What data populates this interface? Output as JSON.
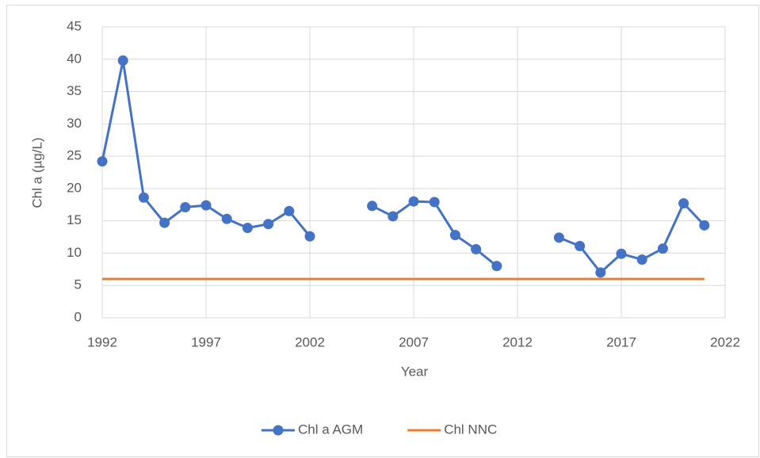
{
  "chart_data": {
    "type": "line",
    "x": [
      1992,
      1993,
      1994,
      1995,
      1996,
      1997,
      1998,
      1999,
      2000,
      2001,
      2002,
      2003,
      2004,
      2005,
      2006,
      2007,
      2008,
      2009,
      2010,
      2011,
      2012,
      2013,
      2014,
      2015,
      2016,
      2017,
      2018,
      2019,
      2020,
      2021
    ],
    "series": [
      {
        "name": "Chl a AGM",
        "color": "#4472c4",
        "marker": true,
        "values": [
          24.2,
          39.8,
          18.6,
          14.7,
          17.1,
          17.4,
          15.3,
          13.9,
          14.5,
          16.5,
          12.6,
          null,
          null,
          17.3,
          15.7,
          18.0,
          17.9,
          12.8,
          10.6,
          8.0,
          null,
          null,
          12.4,
          11.1,
          7.0,
          9.9,
          9.0,
          10.7,
          17.7,
          14.3
        ]
      },
      {
        "name": "Chl NNC",
        "color": "#ed7d31",
        "marker": false,
        "values": [
          6,
          6,
          6,
          6,
          6,
          6,
          6,
          6,
          6,
          6,
          6,
          6,
          6,
          6,
          6,
          6,
          6,
          6,
          6,
          6,
          6,
          6,
          6,
          6,
          6,
          6,
          6,
          6,
          6,
          6
        ]
      }
    ],
    "xlabel": "Year",
    "ylabel": "Chl a (µg/L)",
    "xlim": [
      1992,
      2022
    ],
    "xticks": [
      1992,
      1997,
      2002,
      2007,
      2012,
      2017,
      2022
    ],
    "ylim": [
      0,
      45
    ],
    "yticks": [
      0,
      5,
      10,
      15,
      20,
      25,
      30,
      35,
      40,
      45
    ],
    "grid": true,
    "legend": "bottom"
  }
}
